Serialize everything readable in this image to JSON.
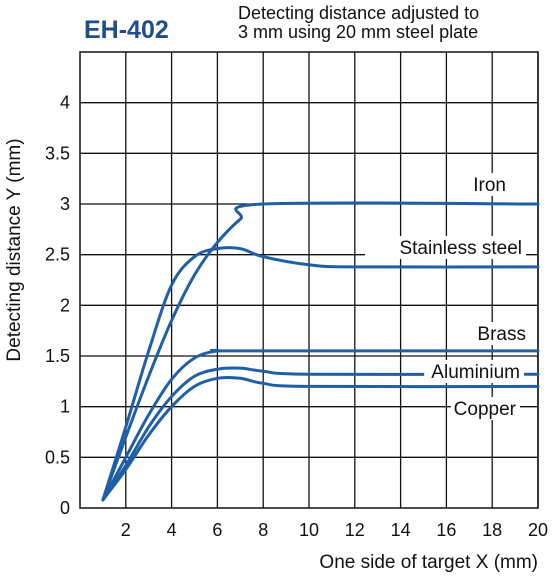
{
  "chart_data": {
    "type": "line",
    "title": "EH-402",
    "subtitle": [
      "Detecting distance adjusted to",
      "3 mm using 20 mm steel plate"
    ],
    "xlabel": "One side of target X (mm)",
    "ylabel": "Detecting distance Y (mm)",
    "xlim": [
      0,
      20
    ],
    "ylim": [
      0,
      4.5
    ],
    "xticks": [
      2,
      4,
      6,
      8,
      10,
      12,
      14,
      16,
      18,
      20
    ],
    "yticks": [
      0,
      0.5,
      1,
      1.5,
      2,
      2.5,
      3,
      3.5,
      4
    ],
    "ytick_labels": [
      "0",
      "0.5",
      "1",
      "1.5",
      "2",
      "2.5",
      "3",
      "3.5",
      "4"
    ],
    "grid": true,
    "line_color": "#1f5fa6",
    "series": [
      {
        "name": "Iron",
        "x": [
          1,
          2,
          3,
          4,
          5,
          6,
          7,
          8,
          20
        ],
        "y": [
          0.08,
          0.7,
          1.3,
          1.85,
          2.3,
          2.62,
          2.85,
          3.0,
          3.0
        ]
      },
      {
        "name": "Stainless steel",
        "x": [
          1,
          2,
          3,
          4,
          5,
          6,
          7,
          8,
          10,
          12,
          20
        ],
        "y": [
          0.08,
          0.8,
          1.55,
          2.2,
          2.48,
          2.56,
          2.56,
          2.48,
          2.4,
          2.38,
          2.38
        ]
      },
      {
        "name": "Brass",
        "x": [
          1,
          2,
          3,
          4,
          5,
          6,
          7,
          20
        ],
        "y": [
          0.08,
          0.5,
          0.92,
          1.27,
          1.48,
          1.55,
          1.55,
          1.55
        ]
      },
      {
        "name": "Aluminium",
        "x": [
          1,
          2,
          3,
          4,
          5,
          6,
          7,
          8,
          10,
          20
        ],
        "y": [
          0.08,
          0.42,
          0.8,
          1.1,
          1.3,
          1.37,
          1.38,
          1.35,
          1.32,
          1.32
        ]
      },
      {
        "name": "Copper",
        "x": [
          1,
          2,
          3,
          4,
          5,
          6,
          7,
          8,
          10,
          20
        ],
        "y": [
          0.08,
          0.38,
          0.72,
          1.0,
          1.2,
          1.28,
          1.28,
          1.23,
          1.2,
          1.2
        ]
      }
    ]
  }
}
